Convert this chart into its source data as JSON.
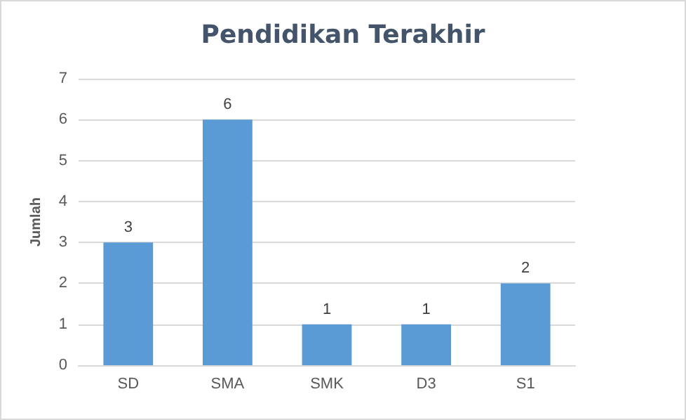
{
  "chart_data": {
    "type": "bar",
    "title": "Pendidikan Terakhir",
    "ylabel": "Jumlah",
    "categories": [
      "SD",
      "SMA",
      "SMK",
      "D3",
      "S1"
    ],
    "values": [
      3,
      6,
      1,
      1,
      2
    ],
    "color": "#5b9bd5",
    "ylim": [
      0,
      7
    ],
    "yticks": [
      0,
      1,
      2,
      3,
      4,
      5,
      6,
      7
    ],
    "grid": "y",
    "data_labels": true
  }
}
